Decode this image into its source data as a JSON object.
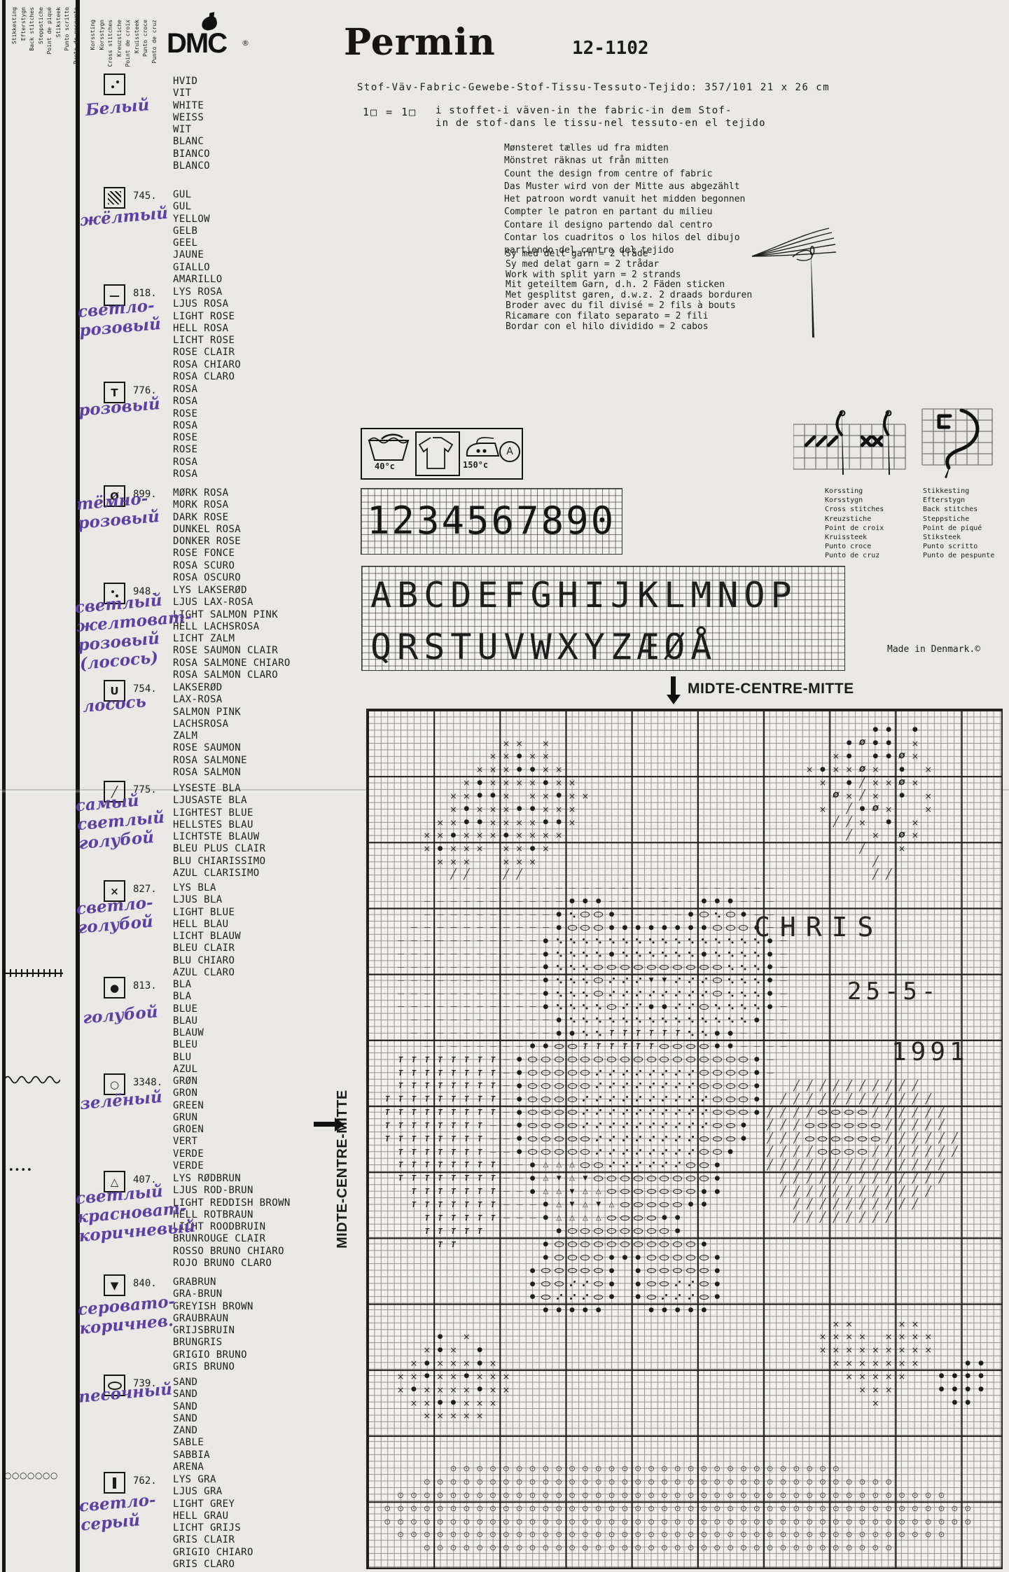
{
  "header": {
    "dmc": "DMC",
    "registered": "®",
    "brand": "Permin",
    "pattern_number": "12-1102"
  },
  "fabric_line": "Stof-Väv-Fabric-Gewebe-Stof-Tissu-Tessuto-Tejido: 357/101  21 x 26 cm",
  "gauge": {
    "label": "1□  = 1□",
    "line1": "i stoffet-i väven-in the fabric-in dem Stof-",
    "line2": "in de stof-dans le tissu-nel tessuto-en el tejido"
  },
  "count_from_center": [
    "Mønsteret tælles ud fra midten",
    "Mönstret räknas ut från mitten",
    "Count the design from centre of fabric",
    "Das Muster wird von der Mitte aus abgezählt",
    "Het patroon wordt vanuit het midden begonnen",
    "Compter le patron en partant du milieu",
    "Contare il designo partendo dal centro",
    "Contar los cuadritos o los hilos del dibujo",
    "partiendo del centro del tejido"
  ],
  "split_yarn": [
    "Sy med delt garn = 2 tråde",
    "Sy med delat garn = 2 trådar",
    "Work with split yarn = 2 strands",
    "Mit geteiltem Garn, d.h. 2 Fäden sticken",
    "Met gesplitst garen, d.w.z. 2 draads borduren",
    "Broder avec du fil divisé = 2 fils à bouts",
    "Ricamare con filato separato = 2 fili",
    "Bordar con el hilo dividido = 2 cabos"
  ],
  "care": {
    "wash_temp": "40°c",
    "iron_temp": "150°c",
    "bleach_letter": "A"
  },
  "digits_chart": "1234567890",
  "alphabet_rows": [
    "ABCDEFGHIJKLMNOP",
    "QRSTUVWXYZÆØÅ"
  ],
  "made_in": "Made in Denmark.©",
  "cross_stitch_caption": [
    "Korssting",
    "Korsstygn",
    "Cross stitches",
    "Kreuzstiche",
    "Point de croix",
    "Kruissteek",
    "Punto croce",
    "Punto de cruz"
  ],
  "back_stitch_caption": [
    "Stikkesting",
    "Efterstygn",
    "Back stitches",
    "Steppstiche",
    "Point de piqué",
    "Stiksteek",
    "Punto scritto",
    "Punto de pespunte"
  ],
  "legend": [
    {
      "sym": "two-dots",
      "code": "",
      "names": [
        "HVID",
        "VIT",
        "WHITE",
        "WEISS",
        "WIT",
        "BLANC",
        "BIANCO",
        "BLANCO"
      ],
      "note": "Белый"
    },
    {
      "sym": "hatch",
      "code": "745.",
      "names": [
        "GUL",
        "GUL",
        "YELLOW",
        "GELB",
        "GEEL",
        "JAUNE",
        "GIALLO",
        "AMARILLO"
      ],
      "note": "жёлтый"
    },
    {
      "sym": "dash",
      "code": "818.",
      "names": [
        "LYS ROSA",
        "LJUS ROSA",
        "LIGHT ROSE",
        "HELL ROSA",
        "LICHT ROSE",
        "ROSE CLAIR",
        "ROSA CHIARO",
        "ROSA CLARO"
      ],
      "note": "светло-\nрозовый"
    },
    {
      "sym": "T",
      "code": "776.",
      "names": [
        "ROSA",
        "ROSA",
        "ROSE",
        "ROSA",
        "ROSE",
        "ROSE",
        "ROSA",
        "ROSA"
      ],
      "note": "розовый"
    },
    {
      "sym": "oslash",
      "code": "899.",
      "names": [
        "MØRK ROSA",
        "MORK ROSA",
        "DARK ROSE",
        "DUNKEL ROSA",
        "DONKER ROSE",
        "ROSE FONCE",
        "ROSA SCURO",
        "ROSA OSCURO"
      ],
      "note": "тёмно-\nрозовый"
    },
    {
      "sym": "two-dots2",
      "code": "948.",
      "names": [
        "LYS LAKSERØD",
        "LJUS LAX-ROSA",
        "LIGHT SALMON PINK",
        "HELL LACHSROSA",
        "LICHT ZALM",
        "ROSE SAUMON CLAIR",
        "ROSA SALMONE CHIARO",
        "ROSA SALMON CLARO"
      ],
      "note": "светлый\nжелтоват-\nрозовый\n(лосось)"
    },
    {
      "sym": "U",
      "code": "754.",
      "names": [
        "LAKSERØD",
        "LAX-ROSA",
        "SALMON PINK",
        "LACHSROSA",
        "ZALM",
        "ROSE SAUMON",
        "ROSA SALMONE",
        "ROSA SALMON"
      ],
      "note": "лосось"
    },
    {
      "sym": "slash",
      "code": "775.",
      "names": [
        "LYSESTE BLA",
        "LJUSASTE BLA",
        "LIGHTEST BLUE",
        "HELLSTES BLAU",
        "LICHTSTE BLAUW",
        "BLEU PLUS CLAIR",
        "BLU CHIARISSIMO",
        "AZUL CLARISIMO"
      ],
      "note": "самый\nсветлый\nголубой"
    },
    {
      "sym": "x",
      "code": "827.",
      "names": [
        "LYS BLA",
        "LJUS BLA",
        "LIGHT BLUE",
        "HELL BLAU",
        "LICHT BLAUW",
        "BLEU CLAIR",
        "BLU CHIARO",
        "AZUL CLARO"
      ],
      "note": "светло-\nголубой"
    },
    {
      "sym": "dot",
      "code": "813.",
      "names": [
        "BLA",
        "BLA",
        "BLUE",
        "BLAU",
        "BLAUW",
        "BLEU",
        "BLU",
        "AZUL"
      ],
      "note": "голубой"
    },
    {
      "sym": "circle",
      "code": "3348.",
      "names": [
        "GRØN",
        "GRON",
        "GREEN",
        "GRUN",
        "GROEN",
        "VERT",
        "VERDE",
        "VERDE"
      ],
      "note": "зелёный"
    },
    {
      "sym": "tri",
      "code": "407.",
      "names": [
        "LYS RØDBRUN",
        "LJUS ROD-BRUN",
        "LIGHT REDDISH BROWN",
        "HELL ROTBRAUN",
        "LICHT ROODBRUIN",
        "BRUNROUGE CLAIR",
        "ROSSO BRUNO CHIARO",
        "ROJO BRUNO CLARO"
      ],
      "note": "светлый\nкрасноват-\nкоричневый"
    },
    {
      "sym": "tri-dn",
      "code": "840.",
      "names": [
        "GRABRUN",
        "GRA-BRUN",
        "GREYISH BROWN",
        "GRAUBRAUN",
        "GRIJSBRUIN",
        "BRUNGRIS",
        "GRIGIO BRUNO",
        "GRIS BRUNO"
      ],
      "note": "серовато-\nкоричнев."
    },
    {
      "sym": "oval",
      "code": "739.",
      "names": [
        "SAND",
        "SAND",
        "SAND",
        "SAND",
        "ZAND",
        "SABLE",
        "SABBIA",
        "ARENA"
      ],
      "note": "песочный"
    },
    {
      "sym": "bar",
      "code": "762.",
      "names": [
        "LYS GRA",
        "LJUS GRA",
        "LIGHT GREY",
        "HELL GRAU",
        "LICHT GRIJS",
        "GRIS CLAIR",
        "GRIGIO CHIARO",
        "GRIS CLARO"
      ],
      "note": "светло-\nсерый"
    }
  ],
  "margin_marks": [
    {
      "type": "tick-line",
      "name": "blue-backstitch-sample"
    },
    {
      "type": "wave-line",
      "name": "green-backstitch-sample"
    },
    {
      "type": "dot-row",
      "name": "brown-dots-sample",
      "glyphs": "••••"
    },
    {
      "type": "circle-row",
      "name": "grey-circles-sample",
      "glyphs": "○○○○○○○"
    }
  ],
  "chart": {
    "center_top": "MIDTE-CENTRE-MITTE",
    "center_left": "MIDTE-CENTRE-MITTE",
    "annotations": [
      {
        "text": "CHRIS"
      },
      {
        "text": "25-5-"
      },
      {
        "text": "1991"
      }
    ],
    "symbol_map": {
      "w": "two-dots",
      "y": "hatch",
      "-": "dash",
      "T": "T",
      "0": "oslash",
      ":": "two-dots2",
      "U": "U",
      "/": "slash",
      "x": "x",
      "o": "dot",
      "O": "circle",
      "A": "tri",
      "V": "tri-dn",
      "s": "oval",
      "I": "bar",
      "g": "ground"
    },
    "pattern": [
      "................................................",
      "......................................oo.o......",
      "..........xx.x......................o0oo.x......",
      ".........xxoxx.....................xo.oo0x......",
      "........xxxooxx..................xoxx0x.o.x.....",
      ".......xoxxxxoxx..................x.o/xx0x......",
      "......xxoox.xxoxx..................0x/x.o.x.....",
      "......xoxxxooxxx..................x./o0x..x.....",
      ".....xxooxxxxoox...................//x.o.x......",
      "....xxoxxxoxxxx...................../.x.0x......",
      "....xoxxx.xxox......................./..x.......",
      ".....xxx..xxx........................./.........",
      "......//..//..........................//........",
      "......-------------------------.................",
      "....-----------ooo-------ooo---.................",
      "....----------o:sso-----os:so--.................",
      "...-----------osssoooooooossso--................",
      "..-----------o::::::::::::::::o-................",
      "..-----------o::::o::::::o::::o-................",
      "..-----------o:::ssssssssss:::o-................",
      "..-----------o:::swwwVVwwws:::o-................",
      "..-----------o:::swwwwwwwws:::o-................",
      "..-----------o::::swwoowws::::o-................",
      "...-----------o::::::::::::::o--................",
      "...-----------oo::TTTTTT::oo----................",
      "....--------oossTTTTTTssssoo----................",
      "..TTTTTTTT-ossssssssssssssssso-.................",
      "..TTTTTTTT-ossssswwwwwwwwsssso-.................",
      "..TTTTTTTT-ossssswwwwwwwwsssso..//////////......",
      ".TTTTTTTTT-osssswwwwwwwwwwssso.////////////.....",
      ".TTTTTTTTT-osssswwwwwwwwwwssso////ssss//////....",
      ".TTTTTTTT--osssswwwwwwwwwwsso.///ssssss/////....",
      ".TTTTTTTT--ossssswwwwwwwwssso.///ssssss//////...",
      "..TTTTTTT--ossssswwwwwwwwsso..////ssss///////...",
      "..TTTTTTTT--oAAAsswwwwwwsso...//////////////....",
      "..TTTTTTTT--oAVAVssssssssso..../////////////....",
      "...TTTTTTT--oAAVAAsssssssoo....////////////.....",
      "...TTTTTTT---oAVAVAsssssoo......//////////......",
      "....TTTTTT---oAAAAssssoo........////////........",
      "....TTTTT.....osssssssso........................",
      ".....TT......ossssssssssso......................",
      ".............ossssooossssso.....................",
      "............ossssso.ossssso.....................",
      "............osswwso.osswwso.....................",
      "............oswwwso.oswwwso.....................",
      ".............ooooo...ooooo......................",
      "...................................xx...xx......",
      ".....o.x..........................xxxx.xxxx.....",
      "....xox.o.........................xxxxxxxxx.....",
      "...xoxxxox.........................xxxxxxx...oo.",
      "..xxoxxoxxx.........................xxxxx..oooo.",
      "..xoxxxxoxx..........................xxx...oooo.",
      "...xxooxxx............................x.....oo..",
      "....xxxxx.......................................",
      "................................................",
      "................................................",
      "................................................",
      "......gggggggggggggggggggggggggggggg............",
      "....gggggggggggggggggggggggggggggggggggg........",
      "..gggggggggggggggggggggggggggggggggggggggggg....",
      ".ggggggggggggggggggggggggggggggggggggggggggggg.",
      ".ggggggggggggggggggggggggggggggggggggggggggggg.",
      "..gggggggggggggggggggggggggggggggggggggggggg....",
      "....gggggggggggggggggggggggggggggggggggg........",
      "................................................"
    ]
  }
}
